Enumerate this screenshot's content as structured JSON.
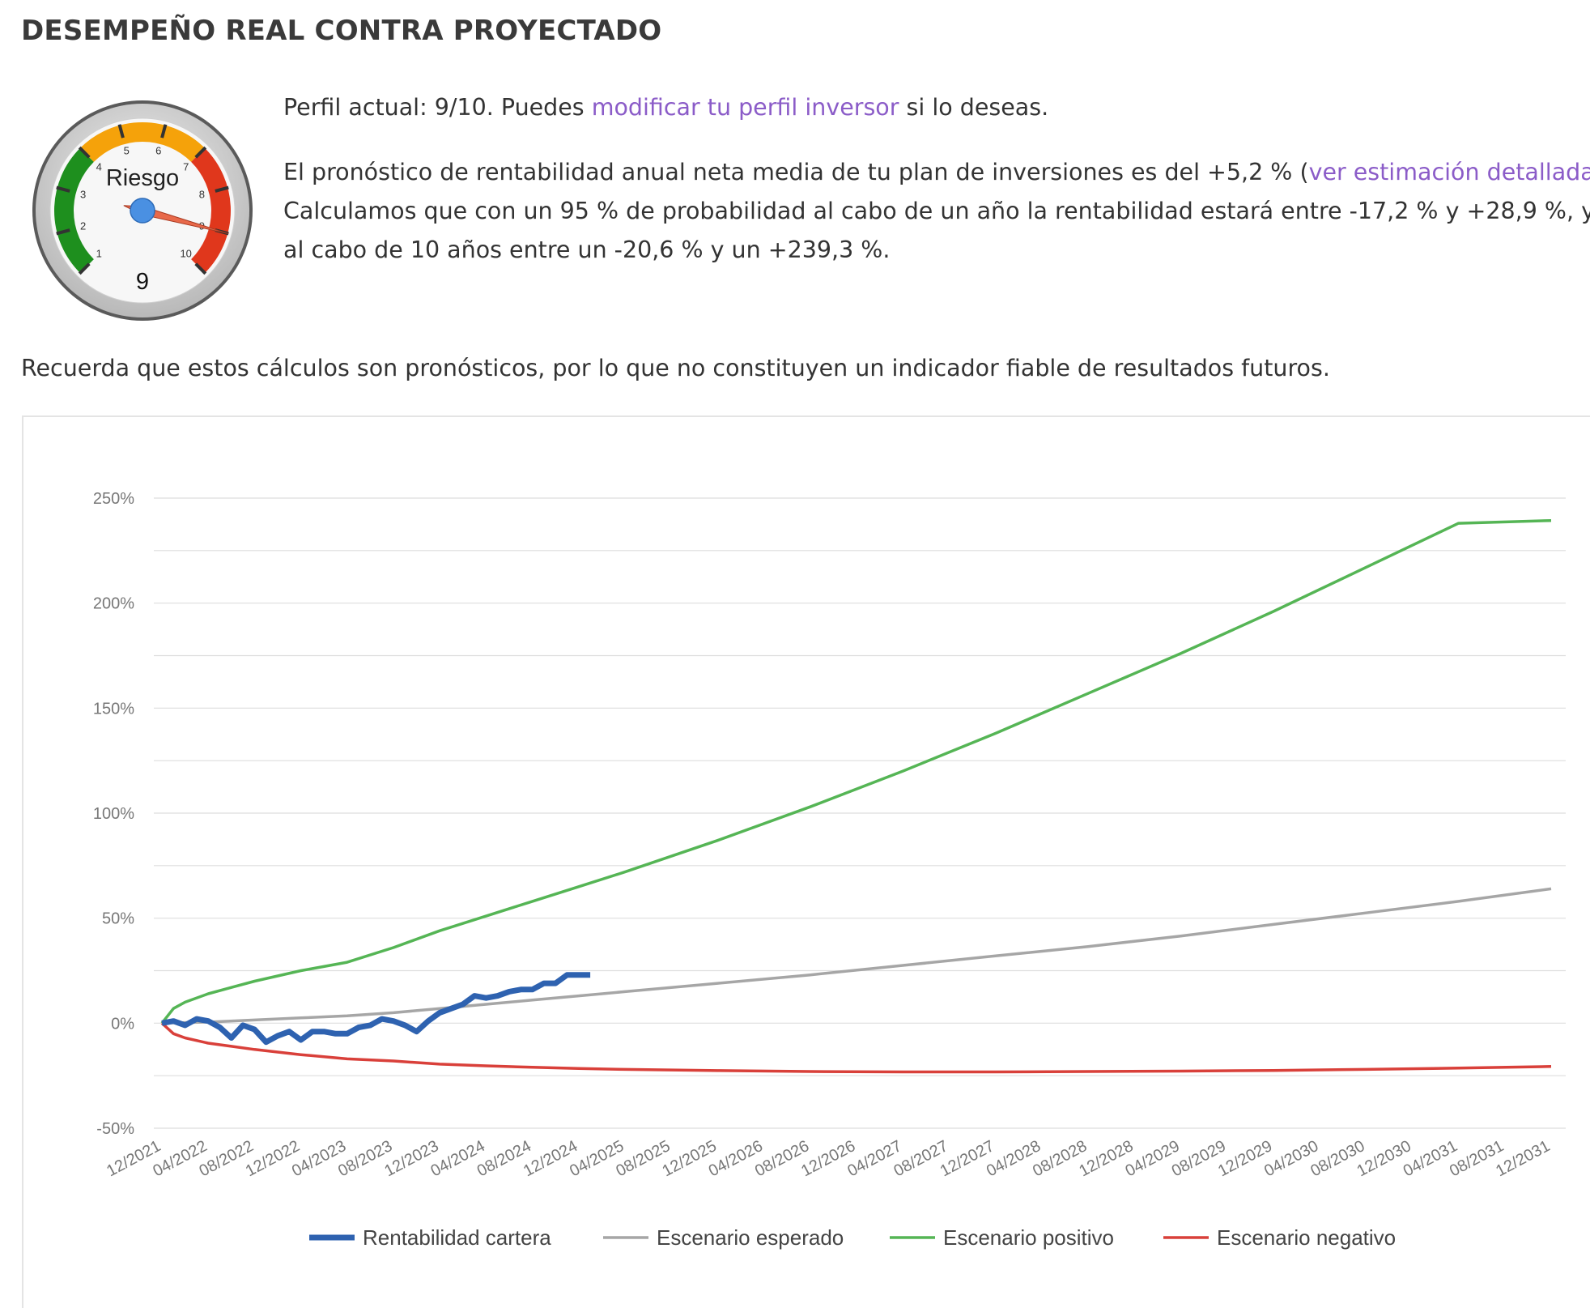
{
  "page": {
    "title": "DESEMPEÑO REAL CONTRA PROYECTADO",
    "profile_line": {
      "prefix": "Perfil actual: 9/10. Puedes ",
      "link": "modificar tu perfil inversor",
      "suffix": " si lo deseas."
    },
    "forecast": {
      "line1_prefix": "El pronóstico de rentabilidad anual neta media de tu plan de inversiones es del +5,2 % (",
      "line1_link": "ver estimación detallada",
      "line1_suffix": ").",
      "line2": "Calculamos que con un 95 % de probabilidad al cabo de un año la rentabilidad estará entre -17,2 % y +28,9 %, y",
      "line3": "al cabo de 10 años entre un -20,6 % y un +239,3 %."
    },
    "disclaimer": "Recuerda que estos cálculos son pronósticos, por lo que no constituyen un indicador fiable de resultados futuros.",
    "colors": {
      "link": "#8b5cc8",
      "text": "#333333"
    }
  },
  "gauge": {
    "label": "Riesgo",
    "value": 9,
    "value_text": "9",
    "min": 1,
    "max": 10,
    "ticks": [
      "1",
      "2",
      "3",
      "4",
      "5",
      "6",
      "7",
      "8",
      "9",
      "10"
    ],
    "zones": [
      {
        "from": 1,
        "to": 4,
        "color": "#1e8f1e"
      },
      {
        "from": 4,
        "to": 7,
        "color": "#f5a20a"
      },
      {
        "from": 7,
        "to": 10,
        "color": "#e0371c"
      }
    ],
    "needle_color": "#e8694a",
    "hub_color": "#4a90e2"
  },
  "chart_data": {
    "type": "line",
    "y_ticks": [
      "-50%",
      "0%",
      "50%",
      "100%",
      "150%",
      "200%",
      "250%"
    ],
    "ylim": [
      -50,
      250
    ],
    "grid": true,
    "x_categories": [
      "12/2021",
      "04/2022",
      "08/2022",
      "12/2022",
      "04/2023",
      "08/2023",
      "12/2023",
      "04/2024",
      "08/2024",
      "12/2024",
      "04/2025",
      "08/2025",
      "12/2025",
      "04/2026",
      "08/2026",
      "12/2026",
      "04/2027",
      "08/2027",
      "12/2027",
      "04/2028",
      "08/2028",
      "12/2028",
      "04/2029",
      "08/2029",
      "12/2029",
      "04/2030",
      "08/2030",
      "12/2030",
      "04/2031",
      "08/2031",
      "12/2031"
    ],
    "legend_position": "bottom",
    "series": [
      {
        "name": "Rentabilidad cartera",
        "color": "#2e62b0",
        "x": [
          0,
          0.25,
          0.5,
          0.75,
          1,
          1.25,
          1.5,
          1.75,
          2,
          2.25,
          2.5,
          2.75,
          3,
          3.25,
          3.5,
          3.75,
          4,
          4.25,
          4.5,
          4.75,
          5,
          5.25,
          5.5,
          5.75,
          6,
          6.25,
          6.5,
          6.75,
          7,
          7.25,
          7.5,
          7.75,
          8,
          8.25,
          8.5,
          8.75,
          9,
          9.25
        ],
        "values": [
          0,
          1,
          -1,
          2,
          1,
          -2,
          -7,
          -1,
          -3,
          -9,
          -6,
          -4,
          -8,
          -4,
          -4,
          -5,
          -5,
          -2,
          -1,
          2,
          1,
          -1,
          -4,
          1,
          5,
          7,
          9,
          13,
          12,
          13,
          15,
          16,
          16,
          19,
          19,
          23,
          23,
          23
        ]
      },
      {
        "name": "Escenario esperado",
        "color": "#a6a6a6",
        "x": [
          0,
          1,
          2,
          3,
          4,
          5,
          6,
          7,
          8,
          9,
          10,
          12,
          14,
          16,
          18,
          20,
          22,
          24,
          26,
          28,
          30
        ],
        "values": [
          0,
          0.5,
          1.5,
          2.5,
          3.5,
          5,
          7,
          9,
          11,
          13,
          15,
          19,
          23,
          27.5,
          32,
          36.5,
          41.5,
          47,
          52.5,
          58,
          64
        ]
      },
      {
        "name": "Escenario positivo",
        "color": "#55b555",
        "x": [
          0,
          0.25,
          0.5,
          1,
          1.5,
          2,
          3,
          4,
          5,
          6,
          7,
          8,
          9,
          10,
          12,
          14,
          16,
          18,
          20,
          22,
          24,
          26,
          28,
          30
        ],
        "values": [
          0,
          7,
          10,
          14,
          17,
          20,
          25,
          29,
          36,
          44,
          51,
          58,
          65,
          72,
          87,
          103,
          120,
          138,
          157,
          176,
          196,
          217,
          238,
          239.3
        ]
      },
      {
        "name": "Escenario negativo",
        "color": "#d9403a",
        "x": [
          0,
          0.25,
          0.5,
          1,
          1.5,
          2,
          3,
          4,
          5,
          6,
          7,
          8,
          9,
          10,
          12,
          14,
          16,
          18,
          20,
          22,
          24,
          26,
          28,
          30
        ],
        "values": [
          0,
          -5,
          -7,
          -9.5,
          -11,
          -12.5,
          -15,
          -17,
          -18,
          -19.5,
          -20.3,
          -21,
          -21.6,
          -22,
          -22.6,
          -23,
          -23.2,
          -23.2,
          -23,
          -22.8,
          -22.5,
          -22,
          -21.4,
          -20.6
        ]
      }
    ]
  }
}
